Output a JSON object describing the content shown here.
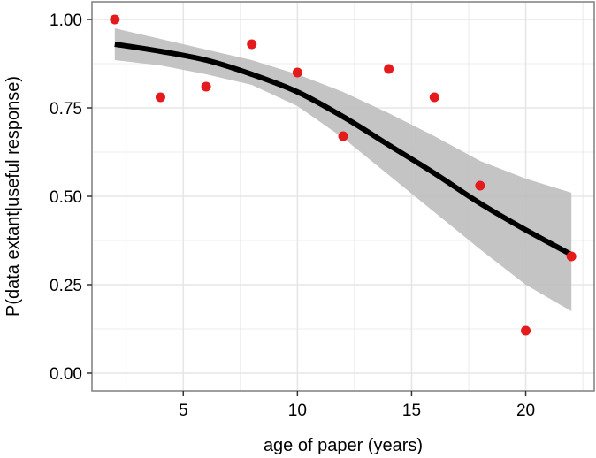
{
  "chart_data": {
    "type": "scatter",
    "title": "",
    "xlabel": "age of paper (years)",
    "ylabel": "P(data extant|useful response)",
    "xlim": [
      1.0,
      23.0
    ],
    "ylim": [
      -0.05,
      1.05
    ],
    "x_ticks": [
      5,
      10,
      15,
      20
    ],
    "x_tick_labels": [
      "5",
      "10",
      "15",
      "20"
    ],
    "y_ticks": [
      0.0,
      0.25,
      0.5,
      0.75,
      1.0
    ],
    "y_tick_labels": [
      "0.00",
      "0.25",
      "0.50",
      "0.75",
      "1.00"
    ],
    "grid": true,
    "legend": "none",
    "points": {
      "x": [
        2,
        4,
        6,
        8,
        10,
        12,
        14,
        16,
        18,
        20,
        22
      ],
      "y": [
        1.0,
        0.78,
        0.81,
        0.93,
        0.85,
        0.67,
        0.86,
        0.78,
        0.53,
        0.12,
        0.33
      ],
      "color": "#e41a1c"
    },
    "fit_line": {
      "x": [
        2,
        4,
        6,
        8,
        10,
        12,
        14,
        16,
        18,
        20,
        22
      ],
      "y": [
        0.93,
        0.91,
        0.885,
        0.845,
        0.795,
        0.725,
        0.645,
        0.565,
        0.48,
        0.405,
        0.335
      ],
      "color": "#000000"
    },
    "confidence_band": {
      "x": [
        2,
        4,
        6,
        8,
        10,
        12,
        14,
        16,
        18,
        20,
        22
      ],
      "lower": [
        0.885,
        0.87,
        0.845,
        0.815,
        0.755,
        0.665,
        0.56,
        0.455,
        0.35,
        0.25,
        0.175
      ],
      "upper": [
        0.975,
        0.945,
        0.915,
        0.885,
        0.845,
        0.795,
        0.735,
        0.67,
        0.6,
        0.55,
        0.51
      ],
      "color": "#bebebe"
    },
    "panel_color": "#ffffff",
    "grid_color": "#e6e6e6",
    "border_color": "#7f7f7f"
  }
}
